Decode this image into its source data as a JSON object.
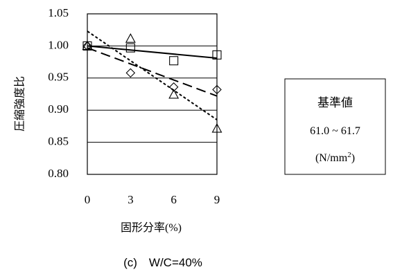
{
  "chart_data": {
    "type": "scatter",
    "ylabel": "圧縮強度比",
    "xlabel": "固形分率",
    "xlabel_unit": "(%)",
    "x_ticks": [
      "0",
      "3",
      "6",
      "9"
    ],
    "y_ticks": [
      "0.80",
      "0.85",
      "0.90",
      "0.95",
      "1.00",
      "1.05"
    ],
    "xlim": [
      0,
      9
    ],
    "ylim": [
      0.8,
      1.05
    ],
    "grid": "horizontal",
    "series": [
      {
        "marker": "square",
        "line": "solid",
        "points": [
          [
            0,
            1.0
          ],
          [
            3,
            0.997
          ],
          [
            6,
            0.977
          ],
          [
            9,
            0.986
          ]
        ],
        "trend": [
          [
            0,
            1.0
          ],
          [
            9,
            0.981
          ]
        ]
      },
      {
        "marker": "diamond",
        "line": "long-dash",
        "points": [
          [
            0,
            1.0
          ],
          [
            3,
            0.958
          ],
          [
            6,
            0.936
          ],
          [
            9,
            0.932
          ]
        ],
        "trend": [
          [
            0,
            0.997
          ],
          [
            9,
            0.922
          ]
        ]
      },
      {
        "marker": "triangle",
        "line": "short-dash",
        "points": [
          [
            0,
            1.0
          ],
          [
            3,
            1.011
          ],
          [
            6,
            0.924
          ],
          [
            9,
            0.871
          ]
        ],
        "trend": [
          [
            0,
            1.023
          ],
          [
            9,
            0.885
          ]
        ]
      }
    ],
    "note": {
      "title": "基準値",
      "range": "61.0 ~ 61.7",
      "unit_pre": "(N/mm",
      "unit_sup": "2",
      "unit_post": ")"
    },
    "caption": "(c)　W/C=40%"
  }
}
